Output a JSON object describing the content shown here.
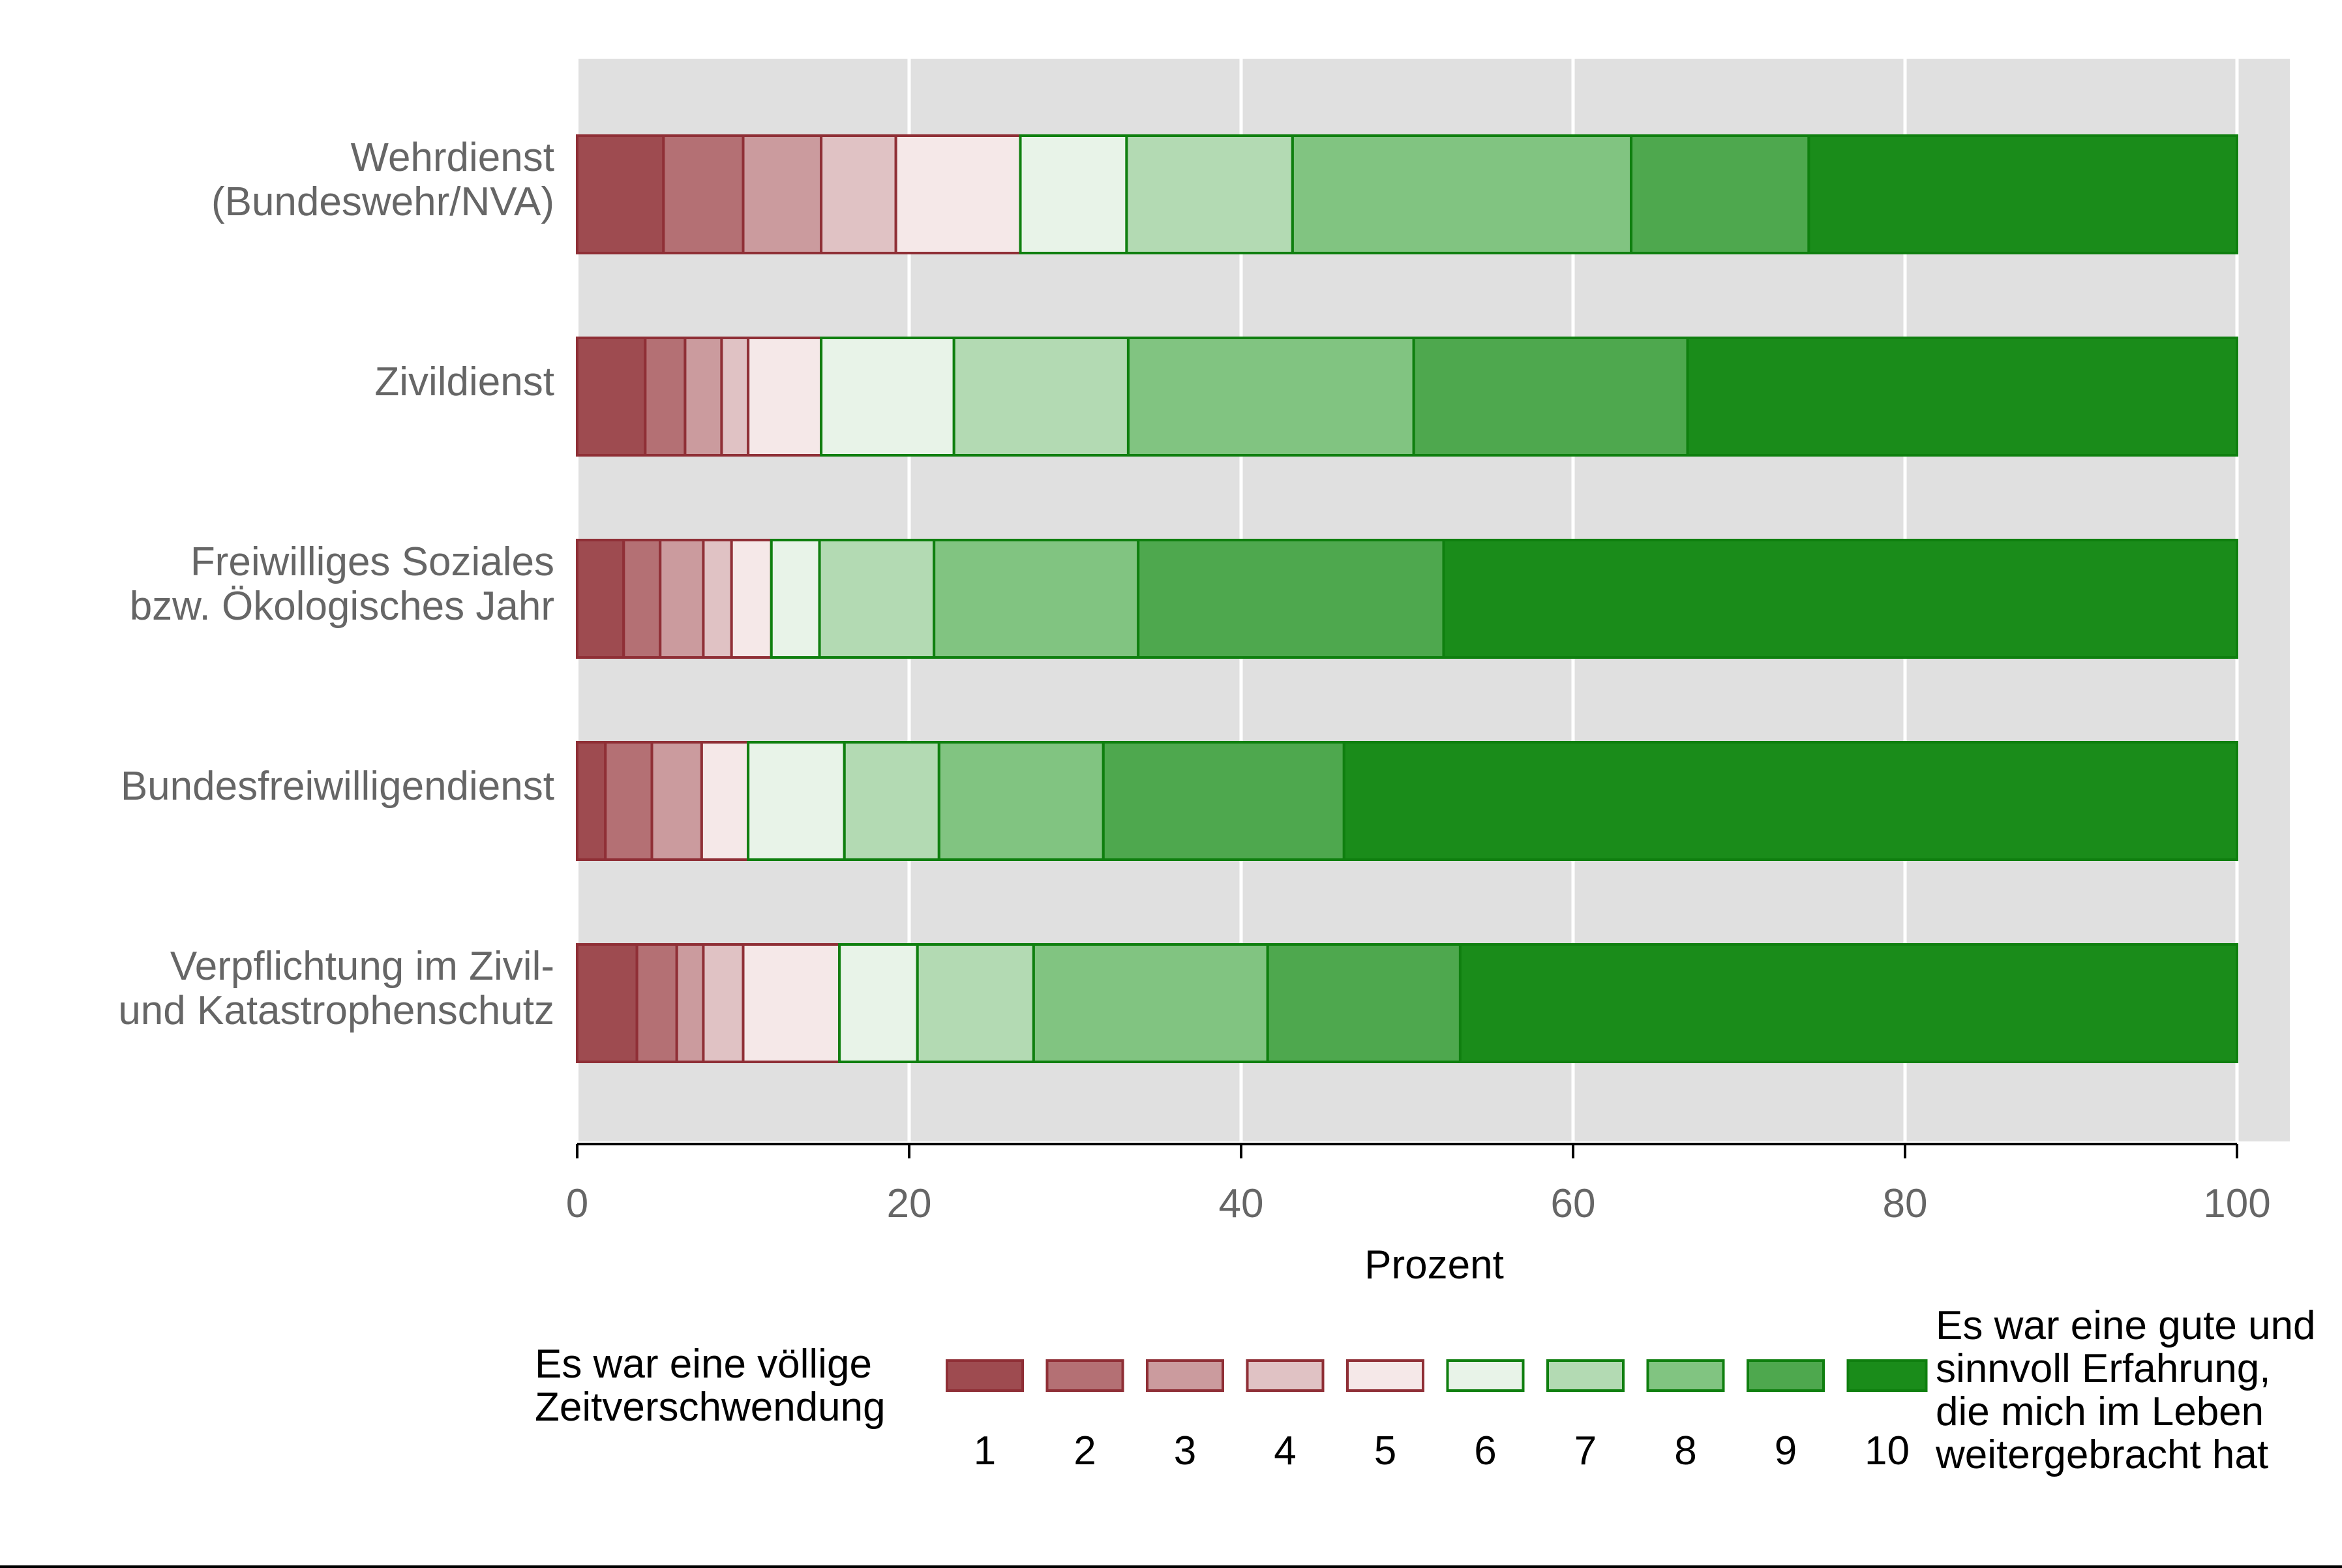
{
  "chart_data": {
    "type": "bar",
    "orientation": "horizontal",
    "stacked": true,
    "categories": [
      [
        "Wehrdienst",
        "(Bundeswehr/NVA)"
      ],
      [
        "Zivildienst"
      ],
      [
        "Freiwilliges Soziales",
        "bzw. Ökologisches Jahr"
      ],
      [
        "Bundesfreiwilligendienst"
      ],
      [
        "Verpflichtung im Zivil-",
        "und Katastrophenschutz"
      ]
    ],
    "series": [
      {
        "name": "1",
        "values": [
          5.2,
          4.1,
          2.8,
          1.7,
          3.6
        ]
      },
      {
        "name": "2",
        "values": [
          4.8,
          2.4,
          2.2,
          2.8,
          2.4
        ]
      },
      {
        "name": "3",
        "values": [
          4.7,
          2.2,
          2.6,
          3.0,
          1.6
        ]
      },
      {
        "name": "4",
        "values": [
          4.5,
          1.6,
          1.7,
          0.0,
          2.4
        ]
      },
      {
        "name": "5",
        "values": [
          7.5,
          4.4,
          2.4,
          2.8,
          5.8
        ]
      },
      {
        "name": "6",
        "values": [
          6.4,
          8.0,
          2.9,
          5.8,
          4.7
        ]
      },
      {
        "name": "7",
        "values": [
          10.0,
          10.5,
          6.9,
          5.7,
          7.0
        ]
      },
      {
        "name": "8",
        "values": [
          20.4,
          17.2,
          12.3,
          9.9,
          14.1
        ]
      },
      {
        "name": "9",
        "values": [
          10.7,
          16.5,
          18.4,
          14.5,
          11.6
        ]
      },
      {
        "name": "10",
        "values": [
          25.8,
          33.1,
          47.8,
          53.8,
          46.8
        ]
      }
    ],
    "colors": [
      "#9e4b50",
      "#b47074",
      "#cb9b9e",
      "#e0c2c4",
      "#f5e8e8",
      "#e8f3e8",
      "#b3dab3",
      "#81c481",
      "#4ea84e",
      "#1a8c1a"
    ],
    "edge_colors": [
      "#8f2f36",
      "#8f2f36",
      "#8f2f36",
      "#8f2f36",
      "#8f2f36",
      "#0f7f0f",
      "#0f7f0f",
      "#0f7f0f",
      "#0f7f0f",
      "#0f7f0f"
    ],
    "xlabel": "Prozent",
    "ylabel": "",
    "xlim": [
      0,
      100
    ],
    "xticks": [
      0,
      20,
      40,
      60,
      80,
      100
    ],
    "grid": true,
    "legend": {
      "placement": "bottom",
      "left_text": [
        "Es war eine völlige",
        "Zeitverschwendung"
      ],
      "right_text": [
        "Es war eine gute und",
        "sinnvoll Erfahrung,",
        "die mich im Leben",
        "weitergebracht hat"
      ],
      "labels": [
        "1",
        "2",
        "3",
        "4",
        "5",
        "6",
        "7",
        "8",
        "9",
        "10"
      ]
    }
  }
}
